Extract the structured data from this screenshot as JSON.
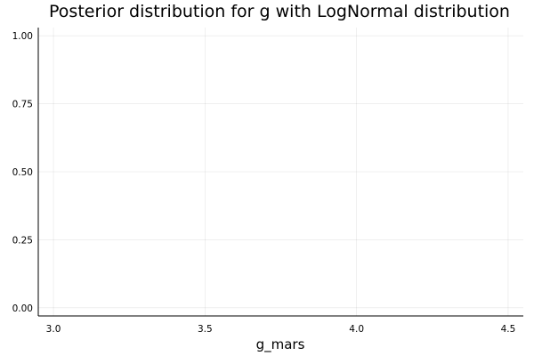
{
  "chart_data": {
    "type": "line",
    "title": "Posterior distribution for g with LogNormal distribution",
    "xlabel": "g_mars",
    "ylabel": "",
    "x_ticks": [
      3.0,
      3.5,
      4.0,
      4.5
    ],
    "x_tick_labels": [
      "3.0",
      "3.5",
      "4.0",
      "4.5"
    ],
    "y_ticks": [
      0.0,
      0.25,
      0.5,
      0.75,
      1.0
    ],
    "y_tick_labels": [
      "0.00",
      "0.25",
      "0.50",
      "0.75",
      "1.00"
    ],
    "xlim": [
      2.95,
      4.55
    ],
    "ylim": [
      -0.03,
      1.03
    ],
    "grid": true,
    "legend": "none",
    "series": []
  }
}
